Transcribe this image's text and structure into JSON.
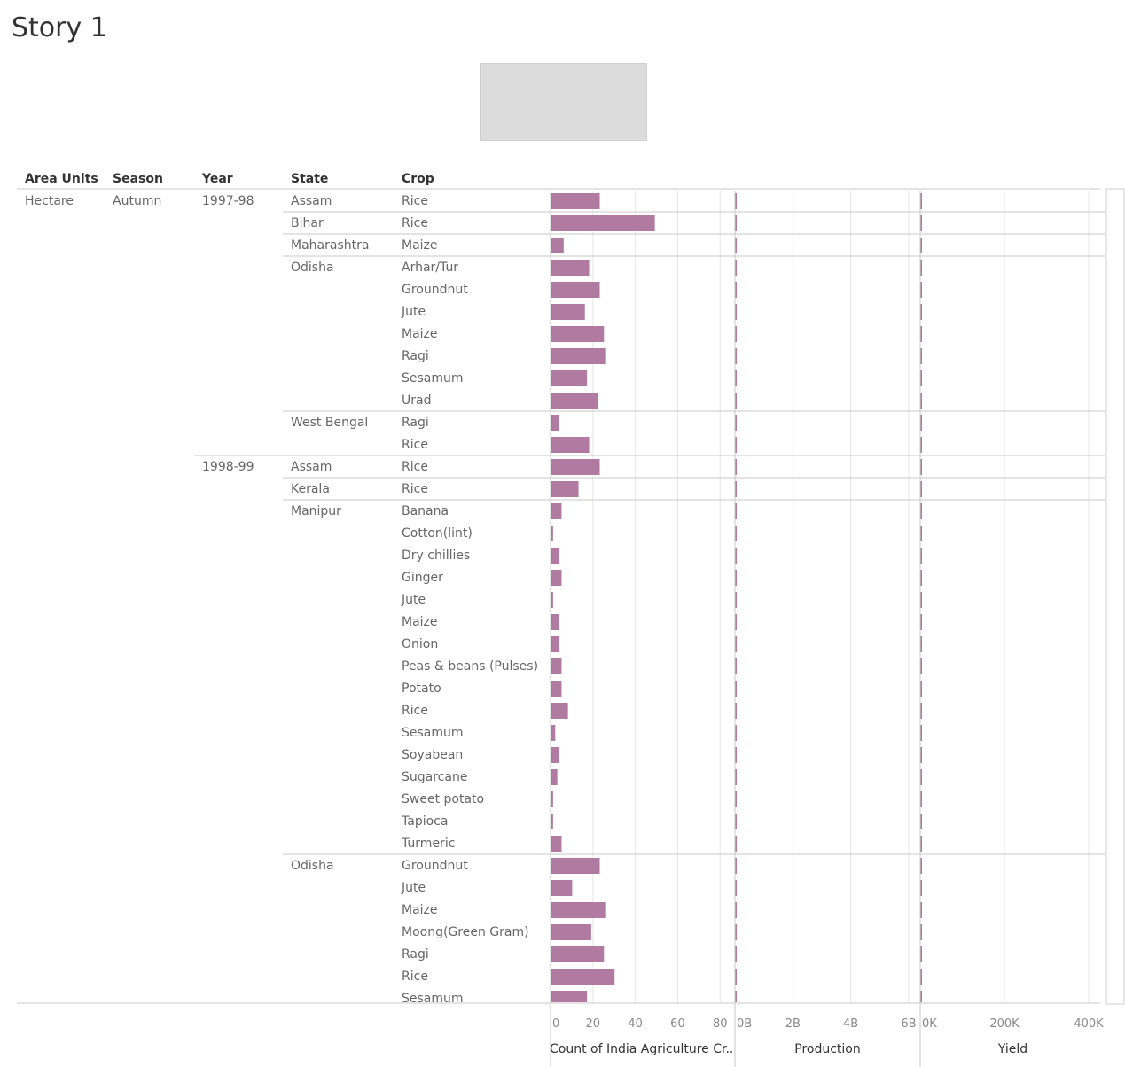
{
  "page_title": "Story 1",
  "headers": {
    "area_units": "Area Units",
    "season": "Season",
    "year": "Year",
    "state": "State",
    "crop": "Crop"
  },
  "colors": {
    "bar": "#b07aa1",
    "grid": "#e6e6e6",
    "rule": "#c8c8c8"
  },
  "chart_data": {
    "type": "bar",
    "orientation": "horizontal",
    "panels": [
      {
        "title": "Count of India Agriculture Cr..",
        "ticks": [
          "0",
          "20",
          "40",
          "60",
          "80"
        ],
        "tick_values": [
          0,
          20,
          40,
          60,
          80
        ],
        "xlim": [
          0,
          87
        ]
      },
      {
        "title": "Production",
        "ticks": [
          "0B",
          "2B",
          "4B",
          "6B"
        ],
        "tick_values": [
          0,
          2,
          4,
          6
        ],
        "xlim": [
          0,
          6.4
        ]
      },
      {
        "title": "Yield",
        "ticks": [
          "0K",
          "200K",
          "400K"
        ],
        "tick_values": [
          0,
          200,
          400
        ],
        "xlim": [
          0,
          440
        ]
      }
    ],
    "area_unit": "Hectare",
    "season": "Autumn",
    "rows": [
      {
        "year": "1997-98",
        "state": "Assam",
        "crop": "Rice",
        "count": 23,
        "production": 0.01,
        "yield": 0.5
      },
      {
        "year": "1997-98",
        "state": "Bihar",
        "crop": "Rice",
        "count": 49,
        "production": 0.01,
        "yield": 0.5
      },
      {
        "year": "1997-98",
        "state": "Maharashtra",
        "crop": "Maize",
        "count": 6,
        "production": 0.01,
        "yield": 2
      },
      {
        "year": "1997-98",
        "state": "Odisha",
        "crop": "Arhar/Tur",
        "count": 18,
        "production": 0.01,
        "yield": 0.5
      },
      {
        "year": "1997-98",
        "state": "Odisha",
        "crop": "Groundnut",
        "count": 23,
        "production": 0.01,
        "yield": 0.5
      },
      {
        "year": "1997-98",
        "state": "Odisha",
        "crop": "Jute",
        "count": 16,
        "production": 0.01,
        "yield": 0.5
      },
      {
        "year": "1997-98",
        "state": "Odisha",
        "crop": "Maize",
        "count": 25,
        "production": 0.01,
        "yield": 0.5
      },
      {
        "year": "1997-98",
        "state": "Odisha",
        "crop": "Ragi",
        "count": 26,
        "production": 0.01,
        "yield": 0.5
      },
      {
        "year": "1997-98",
        "state": "Odisha",
        "crop": "Sesamum",
        "count": 17,
        "production": 0.01,
        "yield": 0.5
      },
      {
        "year": "1997-98",
        "state": "Odisha",
        "crop": "Urad",
        "count": 22,
        "production": 0.01,
        "yield": 0.5
      },
      {
        "year": "1997-98",
        "state": "West Bengal",
        "crop": "Ragi",
        "count": 4,
        "production": 0.01,
        "yield": 0.5
      },
      {
        "year": "1997-98",
        "state": "West Bengal",
        "crop": "Rice",
        "count": 18,
        "production": 0.01,
        "yield": 0.5
      },
      {
        "year": "1998-99",
        "state": "Assam",
        "crop": "Rice",
        "count": 23,
        "production": 0.01,
        "yield": 0.5
      },
      {
        "year": "1998-99",
        "state": "Kerala",
        "crop": "Rice",
        "count": 13,
        "production": 0.01,
        "yield": 0.5
      },
      {
        "year": "1998-99",
        "state": "Manipur",
        "crop": "Banana",
        "count": 5,
        "production": 0.01,
        "yield": 0.5
      },
      {
        "year": "1998-99",
        "state": "Manipur",
        "crop": "Cotton(lint)",
        "count": 1,
        "production": 0.01,
        "yield": 0.5
      },
      {
        "year": "1998-99",
        "state": "Manipur",
        "crop": "Dry chillies",
        "count": 4,
        "production": 0.01,
        "yield": 0.5
      },
      {
        "year": "1998-99",
        "state": "Manipur",
        "crop": "Ginger",
        "count": 5,
        "production": 0.01,
        "yield": 0.5
      },
      {
        "year": "1998-99",
        "state": "Manipur",
        "crop": "Jute",
        "count": 1,
        "production": 0.01,
        "yield": 0.5
      },
      {
        "year": "1998-99",
        "state": "Manipur",
        "crop": "Maize",
        "count": 4,
        "production": 0.01,
        "yield": 0.5
      },
      {
        "year": "1998-99",
        "state": "Manipur",
        "crop": "Onion",
        "count": 4,
        "production": 0.01,
        "yield": 0.5
      },
      {
        "year": "1998-99",
        "state": "Manipur",
        "crop": "Peas & beans (Pulses)",
        "count": 5,
        "production": 0.01,
        "yield": 0.5
      },
      {
        "year": "1998-99",
        "state": "Manipur",
        "crop": "Potato",
        "count": 5,
        "production": 0.01,
        "yield": 0.5
      },
      {
        "year": "1998-99",
        "state": "Manipur",
        "crop": "Rice",
        "count": 8,
        "production": 0.01,
        "yield": 0.5
      },
      {
        "year": "1998-99",
        "state": "Manipur",
        "crop": "Sesamum",
        "count": 2,
        "production": 0.01,
        "yield": 0.5
      },
      {
        "year": "1998-99",
        "state": "Manipur",
        "crop": "Soyabean",
        "count": 4,
        "production": 0.01,
        "yield": 0.5
      },
      {
        "year": "1998-99",
        "state": "Manipur",
        "crop": "Sugarcane",
        "count": 3,
        "production": 0.01,
        "yield": 0.5
      },
      {
        "year": "1998-99",
        "state": "Manipur",
        "crop": "Sweet potato",
        "count": 1,
        "production": 0.01,
        "yield": 0.5
      },
      {
        "year": "1998-99",
        "state": "Manipur",
        "crop": "Tapioca",
        "count": 1,
        "production": 0.01,
        "yield": 0.5
      },
      {
        "year": "1998-99",
        "state": "Manipur",
        "crop": "Turmeric",
        "count": 5,
        "production": 0.01,
        "yield": 0.5
      },
      {
        "year": "1998-99",
        "state": "Odisha",
        "crop": "Groundnut",
        "count": 23,
        "production": 0.01,
        "yield": 0.5
      },
      {
        "year": "1998-99",
        "state": "Odisha",
        "crop": "Jute",
        "count": 10,
        "production": 0.01,
        "yield": 0.5
      },
      {
        "year": "1998-99",
        "state": "Odisha",
        "crop": "Maize",
        "count": 26,
        "production": 0.01,
        "yield": 0.5
      },
      {
        "year": "1998-99",
        "state": "Odisha",
        "crop": "Moong(Green Gram)",
        "count": 19,
        "production": 0.01,
        "yield": 0.5
      },
      {
        "year": "1998-99",
        "state": "Odisha",
        "crop": "Ragi",
        "count": 25,
        "production": 0.01,
        "yield": 0.5
      },
      {
        "year": "1998-99",
        "state": "Odisha",
        "crop": "Rice",
        "count": 30,
        "production": 0.01,
        "yield": 0.5
      },
      {
        "year": "1998-99",
        "state": "Odisha",
        "crop": "Sesamum",
        "count": 17,
        "production": 0.01,
        "yield": 0.5
      }
    ]
  }
}
